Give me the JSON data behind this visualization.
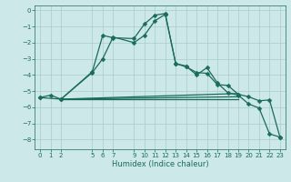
{
  "xlabel": "Humidex (Indice chaleur)",
  "bg_color": "#cce8e8",
  "grid_color": "#aacccc",
  "line_color": "#1a6b5a",
  "xlim": [
    -0.5,
    23.5
  ],
  "ylim": [
    -8.6,
    0.3
  ],
  "xticks": [
    0,
    1,
    2,
    5,
    6,
    7,
    9,
    10,
    11,
    12,
    13,
    14,
    15,
    16,
    17,
    18,
    19,
    20,
    21,
    22,
    23
  ],
  "yticks": [
    0,
    -1,
    -2,
    -3,
    -4,
    -5,
    -6,
    -7,
    -8
  ],
  "line1_x": [
    0,
    1,
    2,
    5,
    6,
    7,
    9,
    10,
    11,
    12,
    13,
    14,
    15,
    16,
    17,
    18,
    19,
    20,
    21,
    22,
    23
  ],
  "line1_y": [
    -5.4,
    -5.25,
    -5.5,
    -3.8,
    -1.55,
    -1.7,
    -1.75,
    -0.85,
    -0.3,
    -0.2,
    -3.3,
    -3.45,
    -4.0,
    -3.55,
    -4.5,
    -5.1,
    -5.25,
    -5.8,
    -6.05,
    -7.65,
    -7.85
  ],
  "line2_x": [
    0,
    2,
    5,
    6,
    7,
    9,
    10,
    11,
    12,
    13,
    14,
    15,
    16,
    17,
    18,
    19,
    20,
    21,
    22,
    23
  ],
  "line2_y": [
    -5.4,
    -5.5,
    -3.85,
    -3.0,
    -1.65,
    -2.0,
    -1.55,
    -0.65,
    -0.25,
    -3.3,
    -3.5,
    -3.85,
    -3.9,
    -4.6,
    -4.65,
    -5.2,
    -5.35,
    -5.6,
    -5.55,
    -7.85
  ],
  "line3_x": [
    2,
    19
  ],
  "line3_y": [
    -5.5,
    -5.5
  ],
  "line4_x": [
    2,
    19
  ],
  "line4_y": [
    -5.5,
    -5.15
  ],
  "line5_x": [
    2,
    19
  ],
  "line5_y": [
    -5.5,
    -5.35
  ]
}
